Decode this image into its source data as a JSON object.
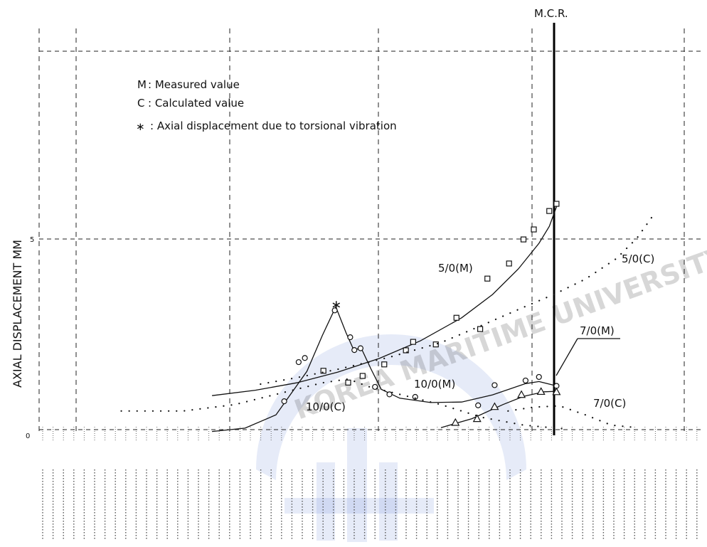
{
  "chart_data": {
    "type": "scatter",
    "title": "",
    "ylabel": "AXIAL   DISPLACEMENT      MM",
    "y_tick_mid": "5",
    "y_tick_zero": "0",
    "mcr_label": "M.C.R.",
    "legend": [
      {
        "symbol": "M",
        "text": ": Measured value"
      },
      {
        "symbol": "C",
        "text": ": Calculated value"
      },
      {
        "symbol": "∗",
        "text": ": Axial displacement  due to torsional vibration"
      }
    ],
    "series": [
      {
        "name": "5/0(M)",
        "kind": "measured",
        "marker": "square",
        "points": [
          [
            0.286,
            0.252
          ],
          [
            0.31,
            0.206
          ],
          [
            0.324,
            0.232
          ],
          [
            0.345,
            0.277
          ],
          [
            0.366,
            0.332
          ],
          [
            0.373,
            0.365
          ],
          [
            0.395,
            0.355
          ],
          [
            0.415,
            0.459
          ],
          [
            0.438,
            0.415
          ],
          [
            0.445,
            0.612
          ],
          [
            0.466,
            0.671
          ],
          [
            0.48,
            0.765
          ],
          [
            0.49,
            0.804
          ],
          [
            0.505,
            0.876
          ],
          [
            0.512,
            0.904
          ]
        ],
        "fit": [
          [
            0.178,
            0.155
          ],
          [
            0.22,
            0.176
          ],
          [
            0.26,
            0.205
          ],
          [
            0.3,
            0.247
          ],
          [
            0.34,
            0.3
          ],
          [
            0.38,
            0.369
          ],
          [
            0.42,
            0.459
          ],
          [
            0.45,
            0.55
          ],
          [
            0.475,
            0.65
          ],
          [
            0.495,
            0.75
          ],
          [
            0.505,
            0.816
          ],
          [
            0.513,
            0.904
          ]
        ]
      },
      {
        "name": "5/0(C)",
        "kind": "calculated",
        "fit": [
          [
            0.225,
            0.2
          ],
          [
            0.26,
            0.225
          ],
          [
            0.3,
            0.258
          ],
          [
            0.35,
            0.305
          ],
          [
            0.4,
            0.362
          ],
          [
            0.44,
            0.43
          ],
          [
            0.48,
            0.5
          ],
          [
            0.51,
            0.551
          ],
          [
            0.54,
            0.61
          ],
          [
            0.57,
            0.69
          ],
          [
            0.59,
            0.77
          ],
          [
            0.605,
            0.855
          ]
        ]
      },
      {
        "name": "10/0(M)",
        "kind": "measured",
        "marker": "circle",
        "points": [
          [
            0.248,
            0.133
          ],
          [
            0.262,
            0.286
          ],
          [
            0.268,
            0.302
          ],
          [
            0.297,
            0.488
          ],
          [
            0.312,
            0.383
          ],
          [
            0.316,
            0.333
          ],
          [
            0.322,
            0.34
          ],
          [
            0.336,
            0.189
          ],
          [
            0.35,
            0.16
          ],
          [
            0.375,
            0.15
          ],
          [
            0.436,
            0.117
          ],
          [
            0.452,
            0.196
          ],
          [
            0.482,
            0.214
          ],
          [
            0.495,
            0.228
          ],
          [
            0.512,
            0.193
          ]
        ],
        "fit": [
          [
            0.178,
            0.015
          ],
          [
            0.21,
            0.028
          ],
          [
            0.24,
            0.08
          ],
          [
            0.27,
            0.25
          ],
          [
            0.285,
            0.39
          ],
          [
            0.298,
            0.502
          ],
          [
            0.308,
            0.4
          ],
          [
            0.316,
            0.328
          ],
          [
            0.322,
            0.346
          ],
          [
            0.332,
            0.26
          ],
          [
            0.342,
            0.18
          ],
          [
            0.36,
            0.145
          ],
          [
            0.39,
            0.128
          ],
          [
            0.42,
            0.13
          ],
          [
            0.45,
            0.158
          ],
          [
            0.482,
            0.202
          ],
          [
            0.495,
            0.21
          ],
          [
            0.512,
            0.193
          ]
        ],
        "peak": [
          0.298,
          0.51
        ]
      },
      {
        "name": "10/0(C)",
        "kind": "calculated",
        "fit": [
          [
            0.09,
            0.095
          ],
          [
            0.15,
            0.095
          ],
          [
            0.2,
            0.12
          ],
          [
            0.25,
            0.17
          ],
          [
            0.285,
            0.205
          ],
          [
            0.31,
            0.22
          ],
          [
            0.33,
            0.19
          ],
          [
            0.36,
            0.16
          ],
          [
            0.4,
            0.12
          ],
          [
            0.44,
            0.07
          ],
          [
            0.48,
            0.04
          ],
          [
            0.52,
            0.025
          ]
        ]
      },
      {
        "name": "7/0(M)",
        "kind": "measured",
        "marker": "triangle",
        "points": [
          [
            0.414,
            0.05
          ],
          [
            0.435,
            0.065
          ],
          [
            0.452,
            0.112
          ],
          [
            0.478,
            0.159
          ],
          [
            0.497,
            0.171
          ],
          [
            0.512,
            0.17
          ]
        ],
        "fit": [
          [
            0.4,
            0.03
          ],
          [
            0.43,
            0.065
          ],
          [
            0.46,
            0.12
          ],
          [
            0.48,
            0.152
          ],
          [
            0.5,
            0.17
          ],
          [
            0.512,
            0.172
          ]
        ]
      },
      {
        "name": "7/0(C)",
        "kind": "calculated",
        "fit": [
          [
            0.465,
            0.095
          ],
          [
            0.49,
            0.11
          ],
          [
            0.515,
            0.115
          ],
          [
            0.54,
            0.08
          ],
          [
            0.565,
            0.04
          ],
          [
            0.59,
            0.03
          ]
        ]
      }
    ],
    "label_positions_hint": "series labels placed next to curves",
    "grid": "dashed"
  }
}
